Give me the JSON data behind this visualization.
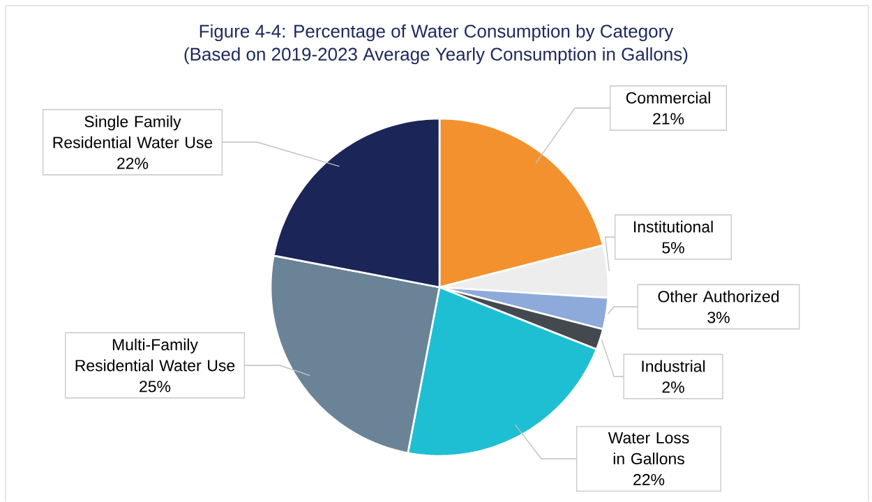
{
  "chart_data": {
    "type": "pie",
    "title": "Figure 4-4: Percentage of Water Consumption by Category",
    "subtitle": "(Based on 2019-2023 Average Yearly Consumption in Gallons)",
    "categories": [
      "Commercial",
      "Institutional",
      "Other Authorized",
      "Industrial",
      "Water Loss in Gallons",
      "Multi-Family Residential Water Use",
      "Single Family Residential Water Use"
    ],
    "values": [
      21,
      5,
      3,
      2,
      22,
      25,
      22
    ],
    "value_labels": [
      "21%",
      "5%",
      "3%",
      "2%",
      "22%",
      "25%",
      "22%"
    ],
    "colors": [
      "#f4912f",
      "#ededed",
      "#8eaadb",
      "#44494f",
      "#1fbfd3",
      "#6a8397",
      "#1c2557"
    ]
  }
}
